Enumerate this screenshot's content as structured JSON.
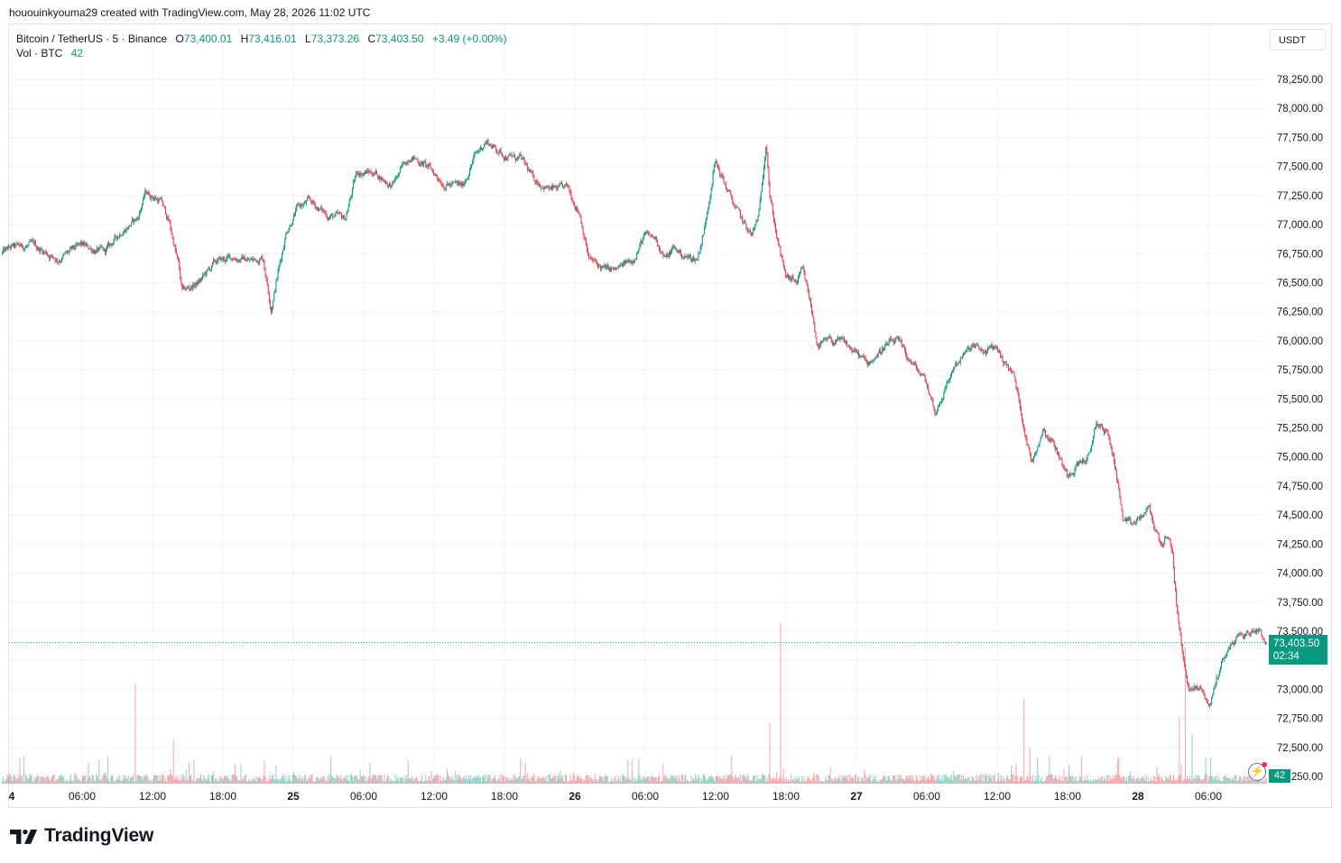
{
  "attribution": "hououinkyouma29 created with TradingView.com, May 28, 2026 11:02 UTC",
  "legend": {
    "symbol": "Bitcoin / TetherUS · 5 · Binance",
    "o_label": "O",
    "o_value": "73,400.01",
    "h_label": "H",
    "h_value": "73,416.01",
    "l_label": "L",
    "l_value": "73,373.26",
    "c_label": "C",
    "c_value": "73,403.50",
    "change": "+3.49 (+0.00%)",
    "vol_label": "Vol · BTC",
    "vol_value": "42"
  },
  "currency_button": "USDT",
  "last_price": {
    "price": "73,403.50",
    "countdown": "02:34"
  },
  "volume_tag": "42",
  "brand": "TradingView",
  "colors": {
    "up": "#089981",
    "down": "#f23645",
    "grid": "#f0f3fa",
    "text": "#131722"
  },
  "icons": {
    "alert": "lightning-bolt-icon",
    "logo": "tradingview-logo-icon"
  },
  "chart_data": {
    "type": "candlestick",
    "title": "Bitcoin / TetherUS · 5 · Binance",
    "interval": "5",
    "y_axis_ticks": [
      "78,250.00",
      "78,000.00",
      "77,750.00",
      "77,500.00",
      "77,250.00",
      "77,000.00",
      "76,750.00",
      "76,500.00",
      "76,250.00",
      "76,000.00",
      "75,750.00",
      "75,500.00",
      "75,250.00",
      "75,000.00",
      "74,750.00",
      "74,500.00",
      "74,250.00",
      "74,000.00",
      "73,750.00",
      "73,500.00",
      "73,250.00",
      "73,000.00",
      "72,750.00",
      "72,500.00",
      "72,250.00"
    ],
    "y_tick_values": [
      78250,
      78000,
      77750,
      77500,
      77250,
      77000,
      76750,
      76500,
      76250,
      76000,
      75750,
      75500,
      75250,
      75000,
      74750,
      74500,
      74250,
      74000,
      73750,
      73500,
      73250,
      73000,
      72750,
      72500,
      72250
    ],
    "x_axis_ticks": [
      "4",
      "06:00",
      "12:00",
      "18:00",
      "25",
      "06:00",
      "12:00",
      "18:00",
      "26",
      "06:00",
      "12:00",
      "18:00",
      "27",
      "06:00",
      "12:00",
      "18:00",
      "28",
      "06:00"
    ],
    "x_tick_hours": [
      0,
      6,
      12,
      18,
      24,
      30,
      36,
      42,
      48,
      54,
      60,
      66,
      72,
      78,
      84,
      90,
      96,
      102
    ],
    "ylim": [
      72250,
      78250
    ],
    "last_close": 73403.5,
    "grid": true,
    "price_path": [
      {
        "h": -0.8,
        "p": 76750
      },
      {
        "h": 0,
        "p": 76800
      },
      {
        "h": 2,
        "p": 76820
      },
      {
        "h": 4,
        "p": 76700
      },
      {
        "h": 6,
        "p": 76820
      },
      {
        "h": 8,
        "p": 76760
      },
      {
        "h": 9.5,
        "p": 76950
      },
      {
        "h": 10.8,
        "p": 77050
      },
      {
        "h": 11.5,
        "p": 77280
      },
      {
        "h": 12.8,
        "p": 77200
      },
      {
        "h": 13.5,
        "p": 77020
      },
      {
        "h": 14.3,
        "p": 76650
      },
      {
        "h": 14.6,
        "p": 76420
      },
      {
        "h": 16,
        "p": 76500
      },
      {
        "h": 17.5,
        "p": 76680
      },
      {
        "h": 19,
        "p": 76720
      },
      {
        "h": 20.5,
        "p": 76690
      },
      {
        "h": 21.5,
        "p": 76720
      },
      {
        "h": 22.2,
        "p": 76280
      },
      {
        "h": 22.8,
        "p": 76600
      },
      {
        "h": 23.5,
        "p": 76950
      },
      {
        "h": 24.5,
        "p": 77150
      },
      {
        "h": 25.5,
        "p": 77200
      },
      {
        "h": 27,
        "p": 77080
      },
      {
        "h": 28.5,
        "p": 77050
      },
      {
        "h": 29.5,
        "p": 77450
      },
      {
        "h": 31,
        "p": 77450
      },
      {
        "h": 32.5,
        "p": 77330
      },
      {
        "h": 34,
        "p": 77600
      },
      {
        "h": 35.5,
        "p": 77500
      },
      {
        "h": 37,
        "p": 77350
      },
      {
        "h": 38.5,
        "p": 77330
      },
      {
        "h": 39.5,
        "p": 77580
      },
      {
        "h": 40.5,
        "p": 77720
      },
      {
        "h": 42,
        "p": 77600
      },
      {
        "h": 43.5,
        "p": 77560
      },
      {
        "h": 44.5,
        "p": 77400
      },
      {
        "h": 46,
        "p": 77300
      },
      {
        "h": 47.5,
        "p": 77310
      },
      {
        "h": 48.5,
        "p": 77100
      },
      {
        "h": 49.3,
        "p": 76700
      },
      {
        "h": 50.5,
        "p": 76620
      },
      {
        "h": 51.5,
        "p": 76600
      },
      {
        "h": 53,
        "p": 76700
      },
      {
        "h": 54,
        "p": 76900
      },
      {
        "h": 55,
        "p": 76880
      },
      {
        "h": 55.8,
        "p": 76700
      },
      {
        "h": 56.5,
        "p": 76800
      },
      {
        "h": 57.5,
        "p": 76720
      },
      {
        "h": 58.5,
        "p": 76700
      },
      {
        "h": 59.2,
        "p": 77000
      },
      {
        "h": 60,
        "p": 77550
      },
      {
        "h": 61.5,
        "p": 77200
      },
      {
        "h": 62.5,
        "p": 77000
      },
      {
        "h": 63.2,
        "p": 76900
      },
      {
        "h": 63.8,
        "p": 77100
      },
      {
        "h": 64.4,
        "p": 77750
      },
      {
        "h": 64.7,
        "p": 77250
      },
      {
        "h": 65.3,
        "p": 76900
      },
      {
        "h": 66,
        "p": 76550
      },
      {
        "h": 67,
        "p": 76500
      },
      {
        "h": 67.5,
        "p": 76600
      },
      {
        "h": 68.2,
        "p": 76300
      },
      {
        "h": 68.8,
        "p": 75950
      },
      {
        "h": 69.8,
        "p": 76000
      },
      {
        "h": 71,
        "p": 75980
      },
      {
        "h": 72,
        "p": 75900
      },
      {
        "h": 73,
        "p": 75800
      },
      {
        "h": 74.5,
        "p": 75950
      },
      {
        "h": 75.5,
        "p": 76000
      },
      {
        "h": 76.5,
        "p": 75850
      },
      {
        "h": 78,
        "p": 75650
      },
      {
        "h": 78.8,
        "p": 75380
      },
      {
        "h": 79.5,
        "p": 75550
      },
      {
        "h": 80.5,
        "p": 75800
      },
      {
        "h": 82,
        "p": 75950
      },
      {
        "h": 83,
        "p": 75900
      },
      {
        "h": 84,
        "p": 75950
      },
      {
        "h": 84.5,
        "p": 75850
      },
      {
        "h": 85.5,
        "p": 75700
      },
      {
        "h": 86.5,
        "p": 75200
      },
      {
        "h": 87,
        "p": 74950
      },
      {
        "h": 88,
        "p": 75250
      },
      {
        "h": 89,
        "p": 75100
      },
      {
        "h": 90,
        "p": 74850
      },
      {
        "h": 91,
        "p": 74950
      },
      {
        "h": 92,
        "p": 75000
      },
      {
        "h": 92.5,
        "p": 75300
      },
      {
        "h": 93.5,
        "p": 75200
      },
      {
        "h": 94.2,
        "p": 74900
      },
      {
        "h": 94.8,
        "p": 74450
      },
      {
        "h": 95.5,
        "p": 74400
      },
      {
        "h": 96.5,
        "p": 74500
      },
      {
        "h": 97,
        "p": 74550
      },
      {
        "h": 98,
        "p": 74250
      },
      {
        "h": 98.5,
        "p": 74300
      },
      {
        "h": 99,
        "p": 74200
      },
      {
        "h": 99.4,
        "p": 73700
      },
      {
        "h": 100,
        "p": 73200
      },
      {
        "h": 100.5,
        "p": 73000
      },
      {
        "h": 101.5,
        "p": 73000
      },
      {
        "h": 102.2,
        "p": 72850
      },
      {
        "h": 102.8,
        "p": 73100
      },
      {
        "h": 103.5,
        "p": 73300
      },
      {
        "h": 104.5,
        "p": 73450
      },
      {
        "h": 105.5,
        "p": 73480
      },
      {
        "h": 106.4,
        "p": 73530
      },
      {
        "h": 107,
        "p": 73403.5
      }
    ],
    "volume": {
      "unit": "BTC",
      "last": 42,
      "typical": 30,
      "spikes": [
        {
          "h": 10.5,
          "v": 530
        },
        {
          "h": 13.8,
          "v": 230
        },
        {
          "h": 21.5,
          "v": 120
        },
        {
          "h": 30.5,
          "v": 110
        },
        {
          "h": 64.6,
          "v": 320
        },
        {
          "h": 65.5,
          "v": 850
        },
        {
          "h": 86.3,
          "v": 450
        },
        {
          "h": 86.8,
          "v": 190
        },
        {
          "h": 99.5,
          "v": 350
        },
        {
          "h": 100,
          "v": 720
        },
        {
          "h": 100.6,
          "v": 260
        }
      ]
    }
  }
}
